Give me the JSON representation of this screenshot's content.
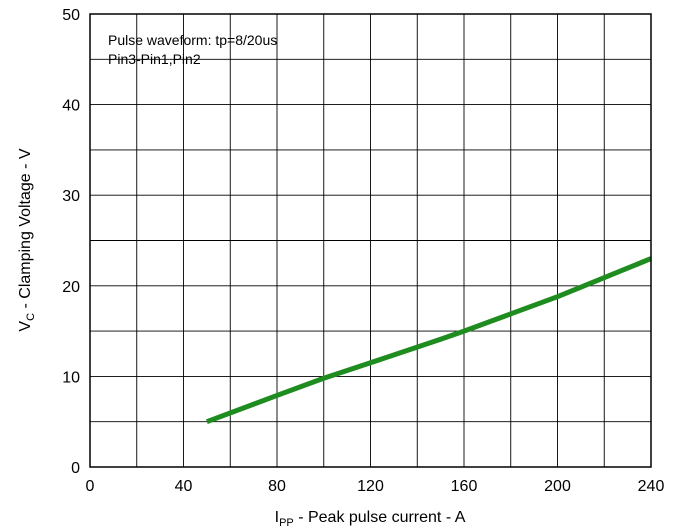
{
  "chart_data": {
    "type": "line",
    "title": "",
    "xlabel": {
      "main": "I",
      "sub": "PP",
      "rest": " - Peak pulse current - A"
    },
    "ylabel": {
      "main": "V",
      "sub": "C",
      "rest": " - Clamping Voltage - V"
    },
    "xlim": [
      0,
      240
    ],
    "ylim": [
      0,
      50
    ],
    "x_ticks": [
      "0",
      "40",
      "80",
      "120",
      "160",
      "200",
      "240"
    ],
    "y_ticks": [
      "0",
      "10",
      "20",
      "30",
      "40",
      "50"
    ],
    "grid": true,
    "annotations": [
      "Pulse waveform: tp=8/20us",
      "Pin3-Pin1,Pin2"
    ],
    "series": [
      {
        "color": "#1f8c1f",
        "x": [
          50,
          80,
          100,
          120,
          150,
          160,
          200,
          240
        ],
        "y": [
          5,
          7.9,
          9.8,
          11.5,
          14.1,
          15.0,
          18.8,
          23.0
        ]
      }
    ]
  }
}
